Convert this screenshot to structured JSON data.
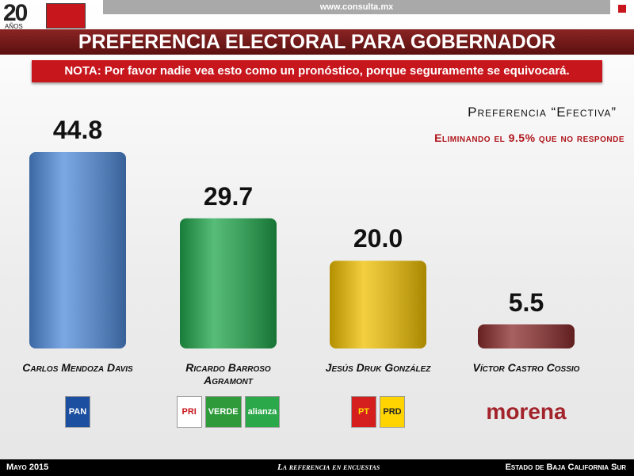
{
  "header": {
    "logo_number": "20",
    "logo_text": "AÑOS",
    "url": "www.consulta.mx"
  },
  "chart_data": {
    "type": "bar",
    "title": "PREFERENCIA ELECTORAL PARA GOBERNADOR",
    "note": "NOTA: Por favor nadie vea esto como un pronóstico, porque seguramente se equivocará.",
    "subtitle": "Preferencia “Efectiva”",
    "annotation": "Eliminando el 9.5% que no responde",
    "categories": [
      "Carlos Mendoza Davis",
      "Ricardo Barroso Agramont",
      "Jesús Druk González",
      "Víctor Castro Cossio"
    ],
    "values": [
      44.8,
      29.7,
      20.0,
      5.5
    ],
    "value_labels": [
      "44.8",
      "29.7",
      "20.0",
      "5.5"
    ],
    "colors": [
      "#4f8ad9",
      "#1fa64a",
      "#f0c000",
      "#8a2b2b"
    ],
    "party_logos": [
      [
        "PAN"
      ],
      [
        "PRI",
        "VERDE",
        "alianza"
      ],
      [
        "PT",
        "PRD"
      ],
      [
        "morena"
      ]
    ]
  },
  "footer": {
    "date": "Mayo 2015",
    "slogan": "La referencia en encuestas",
    "region": "Estado de Baja California Sur"
  }
}
